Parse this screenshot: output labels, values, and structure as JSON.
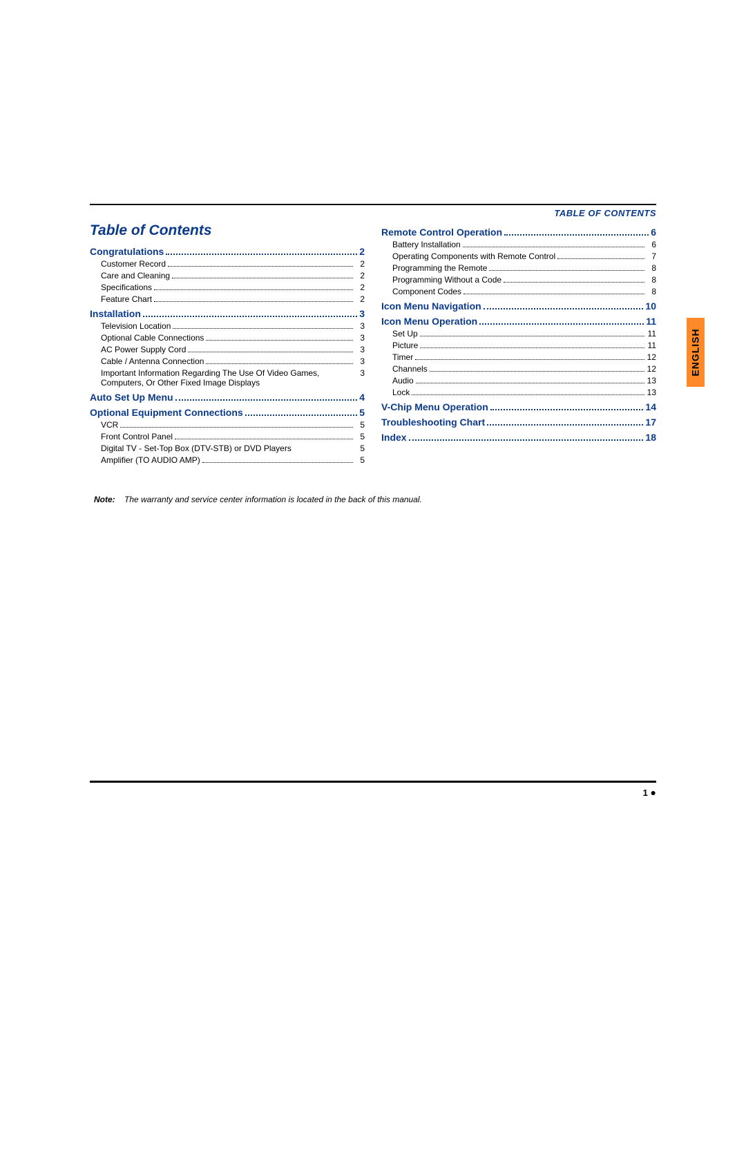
{
  "header": {
    "label": "TABLE OF CONTENTS"
  },
  "sideTab": {
    "text": "ENGLISH",
    "bg": "#ff8a2a"
  },
  "title": "Table of Contents",
  "leftSections": [
    {
      "label": "Congratulations",
      "page": "2",
      "subs": [
        {
          "label": "Customer Record",
          "page": "2"
        },
        {
          "label": "Care and Cleaning",
          "page": "2"
        },
        {
          "label": "Specifications",
          "page": "2"
        },
        {
          "label": "Feature Chart",
          "page": "2"
        }
      ]
    },
    {
      "label": "Installation",
      "page": "3",
      "subs": [
        {
          "label": "Television Location",
          "page": "3"
        },
        {
          "label": "Optional Cable Connections",
          "page": "3"
        },
        {
          "label": "AC Power Supply Cord",
          "page": "3"
        },
        {
          "label": "Cable / Antenna Connection",
          "page": "3"
        },
        {
          "label": "Important Information Regarding The Use Of Video Games, Computers, Or Other Fixed Image Displays",
          "page": "3",
          "nodots": true
        }
      ]
    },
    {
      "label": "Auto Set Up Menu",
      "page": "4",
      "subs": []
    },
    {
      "label": "Optional Equipment Connections",
      "page": "5",
      "subs": [
        {
          "label": "VCR",
          "page": "5"
        },
        {
          "label": "Front Control Panel",
          "page": "5"
        },
        {
          "label": "Digital TV - Set-Top Box (DTV-STB) or DVD Players",
          "page": "5",
          "nodots": true
        },
        {
          "label": "Amplifier (TO AUDIO AMP)",
          "page": "5"
        }
      ]
    }
  ],
  "rightSections": [
    {
      "label": "Remote Control Operation",
      "page": "6",
      "subs": [
        {
          "label": "Battery Installation",
          "page": "6"
        },
        {
          "label": "Operating Components with Remote Control",
          "page": "7"
        },
        {
          "label": "Programming the Remote",
          "page": "8"
        },
        {
          "label": "Programming Without a Code",
          "page": "8"
        },
        {
          "label": "Component Codes",
          "page": "8"
        }
      ]
    },
    {
      "label": "Icon Menu Navigation",
      "page": "10",
      "subs": []
    },
    {
      "label": "Icon Menu Operation",
      "page": "11",
      "subs": [
        {
          "label": "Set Up",
          "page": "11"
        },
        {
          "label": "Picture",
          "page": "11"
        },
        {
          "label": "Timer",
          "page": "12"
        },
        {
          "label": "Channels",
          "page": "12"
        },
        {
          "label": "Audio",
          "page": "13"
        },
        {
          "label": "Lock",
          "page": "13"
        }
      ]
    },
    {
      "label": "V-Chip Menu Operation",
      "page": "14",
      "subs": []
    },
    {
      "label": "Troubleshooting Chart",
      "page": "17",
      "subs": []
    },
    {
      "label": "Index",
      "page": "18",
      "subs": []
    }
  ],
  "note": {
    "lead": "Note:",
    "body": "The warranty and service center information is located in the back of  this manual."
  },
  "footer": {
    "page": "1",
    "bullet": "●"
  },
  "colors": {
    "sectionColor": "#0b3a8a",
    "textColor": "#000000",
    "ruleColor": "#000000"
  }
}
